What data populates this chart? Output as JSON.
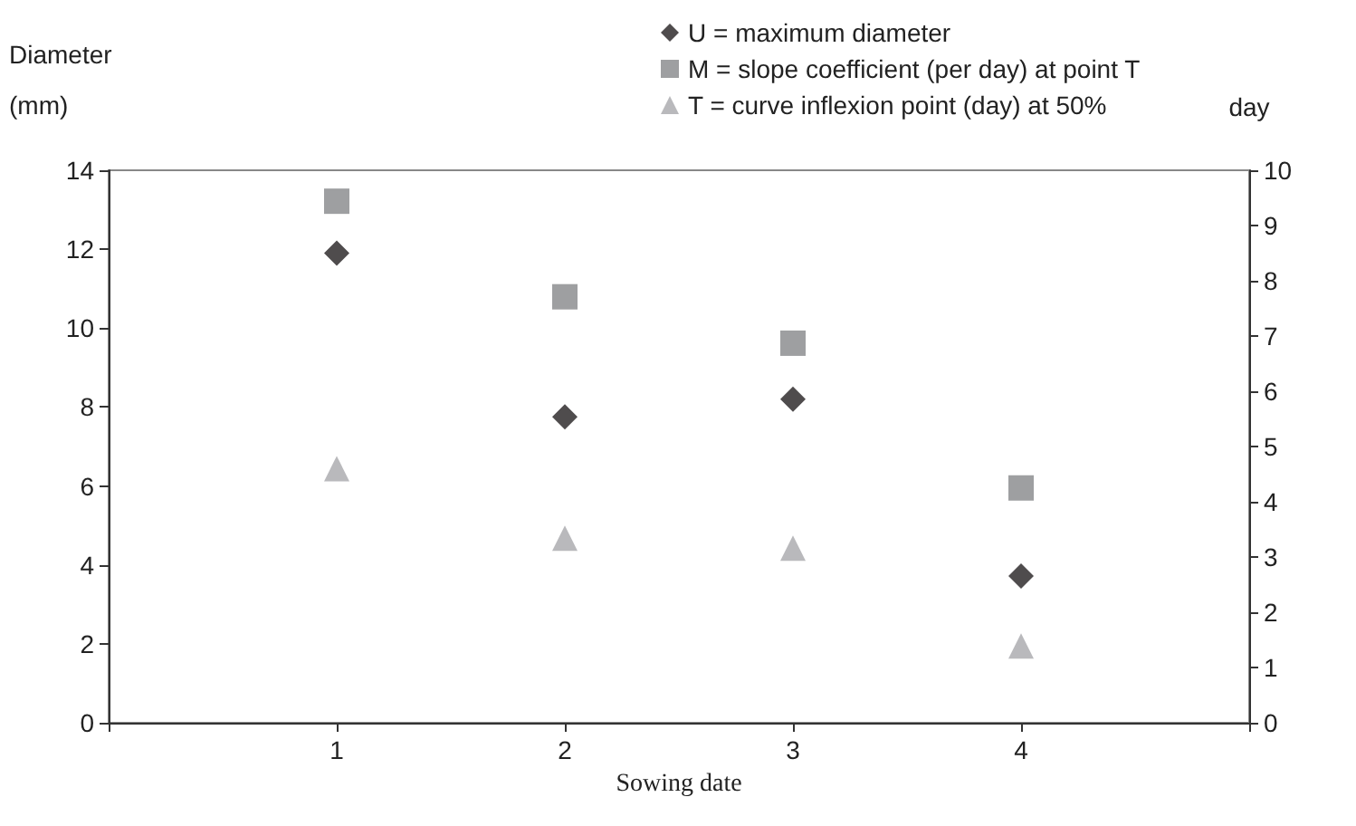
{
  "chart_data": {
    "type": "scatter",
    "xlabel": "Sowing date",
    "ylabel": "Diameter\n(mm)",
    "y2label": "day",
    "x": [
      1,
      2,
      3,
      4
    ],
    "xlim": [
      0,
      5
    ],
    "xticks": [
      {
        "value": 0,
        "label": null
      },
      1,
      2,
      3,
      4,
      {
        "value": 5,
        "label": null
      }
    ],
    "ylim": [
      0,
      14
    ],
    "yticks": [
      0,
      2,
      4,
      6,
      8,
      10,
      12,
      14
    ],
    "y2lim": [
      0,
      10
    ],
    "y2ticks": [
      0,
      1,
      2,
      3,
      4,
      5,
      6,
      7,
      8,
      9,
      10
    ],
    "grid": false,
    "legend": "top right",
    "series": [
      {
        "name": "U = maximum diameter",
        "color": "#231f20",
        "marker": "diamond",
        "values": [
          11.9,
          7.75,
          8.2,
          3.72
        ]
      },
      {
        "name": "M = slope coefficient (per day) at point T",
        "color": "#86878a",
        "marker": "square",
        "axis": "y2",
        "values": [
          9.44,
          7.71,
          6.87,
          4.25
        ]
      },
      {
        "name": "T = curve inflexion point (day) at 50%",
        "color": "#a7a8ab",
        "marker": "triangle",
        "axis": "y2",
        "values": [
          4.6,
          3.34,
          3.16,
          1.39
        ]
      }
    ]
  }
}
